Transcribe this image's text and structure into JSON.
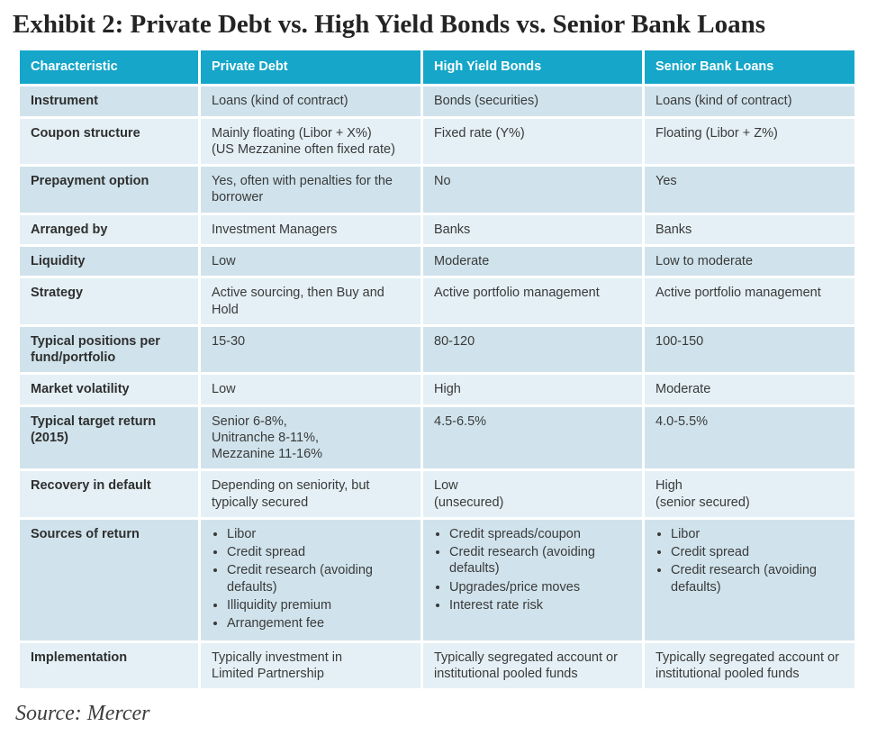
{
  "exhibit": {
    "title": "Exhibit 2: Private Debt vs. High Yield Bonds vs. Senior Bank Loans"
  },
  "source": {
    "label": "Source: Mercer"
  },
  "colors": {
    "header_bg": "#15a6c9",
    "header_text": "#ffffff",
    "row_odd_bg": "#d0e3ec",
    "row_even_bg": "#e4f0f5"
  },
  "table": {
    "headers": [
      "Characteristic",
      "Private Debt",
      "High Yield Bonds",
      "Senior Bank Loans"
    ],
    "rows": [
      {
        "characteristic": "Instrument",
        "private_debt": "Loans (kind of contract)",
        "high_yield_bonds": "Bonds (securities)",
        "senior_bank_loans": "Loans (kind of contract)"
      },
      {
        "characteristic": "Coupon structure",
        "private_debt": "Mainly floating (Libor + X%)\n(US Mezzanine often fixed rate)",
        "high_yield_bonds": "Fixed rate (Y%)",
        "senior_bank_loans": "Floating (Libor + Z%)"
      },
      {
        "characteristic": "Prepayment option",
        "private_debt": "Yes, often with penalties for the borrower",
        "high_yield_bonds": "No",
        "senior_bank_loans": "Yes"
      },
      {
        "characteristic": "Arranged by",
        "private_debt": "Investment Managers",
        "high_yield_bonds": "Banks",
        "senior_bank_loans": "Banks"
      },
      {
        "characteristic": "Liquidity",
        "private_debt": "Low",
        "high_yield_bonds": "Moderate",
        "senior_bank_loans": "Low to moderate"
      },
      {
        "characteristic": "Strategy",
        "private_debt": "Active sourcing, then Buy and Hold",
        "high_yield_bonds": "Active portfolio management",
        "senior_bank_loans": "Active portfolio management"
      },
      {
        "characteristic": "Typical positions per fund/portfolio",
        "private_debt": "15-30",
        "high_yield_bonds": "80-120",
        "senior_bank_loans": "100-150"
      },
      {
        "characteristic": "Market volatility",
        "private_debt": "Low",
        "high_yield_bonds": "High",
        "senior_bank_loans": "Moderate"
      },
      {
        "characteristic": "Typical target return (2015)",
        "private_debt": "Senior 6-8%,\nUnitranche 8-11%,\nMezzanine 11-16%",
        "high_yield_bonds": "4.5-6.5%",
        "senior_bank_loans": "4.0-5.5%"
      },
      {
        "characteristic": "Recovery in default",
        "private_debt": "Depending on seniority, but typically secured",
        "high_yield_bonds": "Low\n(unsecured)",
        "senior_bank_loans": "High\n(senior secured)"
      },
      {
        "characteristic": "Sources of return",
        "private_debt": [
          "Libor",
          "Credit spread",
          "Credit research (avoiding defaults)",
          "Illiquidity premium",
          "Arrangement fee"
        ],
        "high_yield_bonds": [
          "Credit spreads/coupon",
          "Credit research (avoiding defaults)",
          "Upgrades/price moves",
          "Interest rate risk"
        ],
        "senior_bank_loans": [
          "Libor",
          "Credit spread",
          "Credit research (avoiding defaults)"
        ]
      },
      {
        "characteristic": "Implementation",
        "private_debt": "Typically investment in\nLimited Partnership",
        "high_yield_bonds": "Typically segregated account or institutional pooled funds",
        "senior_bank_loans": "Typically segregated account or institutional pooled funds"
      }
    ]
  }
}
